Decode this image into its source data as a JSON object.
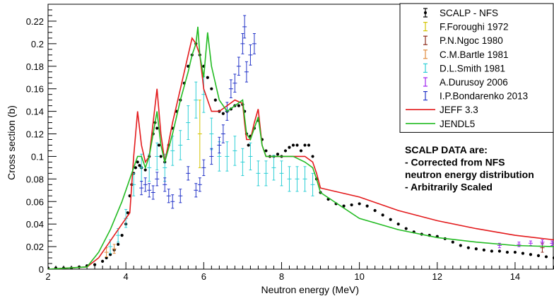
{
  "chart_data": {
    "type": "scatter",
    "title": "",
    "xlabel": "Neutron energy (MeV)",
    "ylabel": "Cross section (b)",
    "xlim": [
      2,
      15
    ],
    "ylim": [
      0,
      0.235
    ],
    "x_ticks": [
      2,
      4,
      6,
      8,
      10,
      12,
      14
    ],
    "x_tick_labels": [
      "2",
      "4",
      "6",
      "8",
      "10",
      "12",
      "14"
    ],
    "y_ticks": [
      0,
      0.02,
      0.04,
      0.06,
      0.08,
      0.1,
      0.12,
      0.14,
      0.16,
      0.18,
      0.2,
      0.22
    ],
    "y_tick_labels": [
      "0",
      "0.02",
      "0.04",
      "0.06",
      "0.08",
      "0.1",
      "0.12",
      "0.14",
      "0.16",
      "0.18",
      "0.2",
      "0.22"
    ],
    "legend_position": "top-right",
    "annotation": [
      "SCALP DATA are:",
      "- Corrected from NFS",
      "neutron energy distribution",
      "- Arbitrarily Scaled"
    ],
    "series": [
      {
        "name": "SCALP - NFS",
        "kind": "points",
        "color": "#000000",
        "x": [
          2.0,
          2.2,
          2.4,
          2.6,
          2.8,
          3.0,
          3.2,
          3.4,
          3.5,
          3.6,
          3.7,
          3.8,
          3.9,
          4.0,
          4.05,
          4.1,
          4.15,
          4.2,
          4.25,
          4.3,
          4.35,
          4.4,
          4.5,
          4.6,
          4.7,
          4.75,
          4.8,
          4.85,
          4.9,
          5.0,
          5.1,
          5.2,
          5.3,
          5.4,
          5.5,
          5.6,
          5.7,
          5.8,
          5.9,
          6.0,
          6.1,
          6.2,
          6.3,
          6.4,
          6.5,
          6.6,
          6.7,
          6.8,
          6.9,
          7.0,
          7.05,
          7.1,
          7.15,
          7.2,
          7.3,
          7.4,
          7.5,
          7.6,
          7.7,
          7.8,
          7.9,
          8.0,
          8.1,
          8.2,
          8.3,
          8.4,
          8.5,
          8.6,
          8.7,
          8.8,
          8.9,
          9.0,
          9.2,
          9.4,
          9.6,
          9.8,
          10.0,
          10.2,
          10.4,
          10.6,
          10.8,
          11.0,
          11.2,
          11.4,
          11.6,
          11.8,
          12.0,
          12.2,
          12.4,
          12.6,
          12.8,
          13.0,
          13.2,
          13.4,
          13.6,
          13.8,
          14.0,
          14.2,
          14.4,
          14.6,
          14.8,
          15.0
        ],
        "y": [
          0.001,
          0.001,
          0.001,
          0.001,
          0.002,
          0.003,
          0.004,
          0.007,
          0.01,
          0.013,
          0.017,
          0.022,
          0.03,
          0.04,
          0.05,
          0.065,
          0.075,
          0.085,
          0.09,
          0.095,
          0.092,
          0.09,
          0.088,
          0.1,
          0.12,
          0.13,
          0.125,
          0.11,
          0.1,
          0.095,
          0.11,
          0.125,
          0.14,
          0.15,
          0.165,
          0.18,
          0.19,
          0.2,
          0.19,
          0.18,
          0.17,
          0.16,
          0.15,
          0.14,
          0.138,
          0.14,
          0.142,
          0.145,
          0.145,
          0.146,
          0.14,
          0.12,
          0.11,
          0.118,
          0.125,
          0.132,
          0.115,
          0.105,
          0.1,
          0.1,
          0.102,
          0.1,
          0.105,
          0.108,
          0.11,
          0.11,
          0.105,
          0.11,
          0.11,
          0.1,
          0.08,
          0.068,
          0.062,
          0.058,
          0.056,
          0.057,
          0.058,
          0.056,
          0.052,
          0.048,
          0.044,
          0.04,
          0.036,
          0.033,
          0.031,
          0.03,
          0.029,
          0.027,
          0.024,
          0.021,
          0.019,
          0.018,
          0.017,
          0.016,
          0.016,
          0.015,
          0.015,
          0.014,
          0.013,
          0.012,
          0.011,
          0.01
        ]
      },
      {
        "name": "F.Foroughi 1972",
        "kind": "errorbars",
        "color": "#d4c400",
        "x": [
          5.9
        ],
        "y": [
          0.12
        ],
        "err": [
          0.03
        ]
      },
      {
        "name": "P.N.Ngoc 1980",
        "kind": "errorbars",
        "color": "#8b2a1a",
        "x": [
          14.7
        ],
        "y": [
          0.019
        ],
        "err": [
          0.004
        ]
      },
      {
        "name": "C.M.Bartle 1981",
        "kind": "errorbars",
        "color": "#e08a3c",
        "x": [
          3.5,
          3.7
        ],
        "y": [
          0.015,
          0.018
        ],
        "err": [
          0.004,
          0.004
        ]
      },
      {
        "name": "D.L.Smith 1981",
        "kind": "errorbars",
        "color": "#2ecfd6",
        "x": [
          3.6,
          3.8,
          4.0,
          4.2,
          4.4,
          4.6,
          4.8,
          5.0,
          5.2,
          5.4,
          5.6,
          5.8,
          6.0,
          6.2,
          6.4,
          6.6,
          6.8,
          7.0,
          7.2,
          7.4,
          7.6,
          7.8,
          8.0,
          8.2,
          8.4,
          8.6,
          8.8
        ],
        "y": [
          0.02,
          0.03,
          0.045,
          0.075,
          0.09,
          0.09,
          0.1,
          0.09,
          0.105,
          0.11,
          0.13,
          0.15,
          0.155,
          0.12,
          0.1,
          0.1,
          0.105,
          0.095,
          0.1,
          0.085,
          0.085,
          0.09,
          0.085,
          0.08,
          0.08,
          0.08,
          0.075
        ],
        "err": [
          0.006,
          0.006,
          0.008,
          0.01,
          0.012,
          0.012,
          0.012,
          0.012,
          0.013,
          0.013,
          0.015,
          0.016,
          0.016,
          0.014,
          0.013,
          0.013,
          0.013,
          0.012,
          0.012,
          0.011,
          0.011,
          0.011,
          0.011,
          0.011,
          0.011,
          0.011,
          0.01
        ]
      },
      {
        "name": "A.Durusoy 2006",
        "kind": "errorbars",
        "color": "#a020f0",
        "x": [
          13.6,
          14.1,
          14.4,
          14.7,
          14.95
        ],
        "y": [
          0.021,
          0.022,
          0.023,
          0.024,
          0.023
        ],
        "err": [
          0.002,
          0.002,
          0.002,
          0.002,
          0.002
        ]
      },
      {
        "name": "I.P.Bondarenko 2013",
        "kind": "errorbars",
        "color": "#2233c8",
        "x": [
          4.4,
          4.5,
          4.6,
          4.7,
          4.8,
          5.0,
          5.1,
          5.2,
          5.4,
          5.6,
          5.8,
          5.9,
          6.0,
          6.2,
          6.4,
          6.5,
          6.6,
          6.7,
          6.8,
          6.9,
          7.0,
          7.05,
          7.1,
          7.2,
          7.3
        ],
        "y": [
          0.072,
          0.075,
          0.07,
          0.068,
          0.08,
          0.075,
          0.065,
          0.06,
          0.065,
          0.085,
          0.07,
          0.075,
          0.09,
          0.1,
          0.11,
          0.12,
          0.14,
          0.16,
          0.165,
          0.18,
          0.2,
          0.215,
          0.175,
          0.19,
          0.2
        ],
        "err": [
          0.006,
          0.006,
          0.006,
          0.006,
          0.006,
          0.006,
          0.006,
          0.006,
          0.006,
          0.006,
          0.006,
          0.006,
          0.007,
          0.007,
          0.007,
          0.008,
          0.008,
          0.008,
          0.008,
          0.008,
          0.009,
          0.01,
          0.009,
          0.009,
          0.009
        ]
      },
      {
        "name": "JEFF 3.3",
        "kind": "line",
        "color": "#e31a1c",
        "x": [
          2.0,
          3.0,
          3.3,
          3.6,
          3.9,
          4.1,
          4.2,
          4.3,
          4.4,
          4.5,
          4.6,
          4.7,
          4.8,
          4.9,
          5.0,
          5.2,
          5.4,
          5.6,
          5.7,
          5.8,
          5.9,
          6.0,
          6.2,
          6.4,
          6.6,
          6.8,
          7.0,
          7.05,
          7.1,
          7.2,
          7.3,
          7.4,
          7.5,
          7.6,
          7.8,
          8.0,
          8.3,
          8.6,
          8.8,
          8.9,
          9.0,
          10.0,
          11.0,
          12.0,
          13.0,
          14.0,
          15.0
        ],
        "y": [
          0.0,
          0.002,
          0.01,
          0.025,
          0.04,
          0.05,
          0.1,
          0.14,
          0.11,
          0.095,
          0.1,
          0.13,
          0.16,
          0.12,
          0.095,
          0.13,
          0.16,
          0.19,
          0.205,
          0.2,
          0.19,
          0.16,
          0.14,
          0.14,
          0.145,
          0.15,
          0.147,
          0.13,
          0.115,
          0.115,
          0.13,
          0.142,
          0.11,
          0.1,
          0.1,
          0.1,
          0.1,
          0.1,
          0.095,
          0.085,
          0.072,
          0.064,
          0.052,
          0.043,
          0.036,
          0.03,
          0.026
        ]
      },
      {
        "name": "JENDL5",
        "kind": "line",
        "color": "#22bb22",
        "x": [
          2.0,
          3.0,
          3.3,
          3.6,
          3.9,
          4.1,
          4.2,
          4.3,
          4.4,
          4.5,
          4.6,
          4.7,
          4.8,
          4.9,
          5.0,
          5.2,
          5.4,
          5.6,
          5.7,
          5.8,
          5.85,
          5.9,
          6.0,
          6.1,
          6.2,
          6.4,
          6.6,
          6.8,
          7.0,
          7.05,
          7.1,
          7.2,
          7.3,
          7.4,
          7.5,
          7.6,
          7.8,
          8.0,
          8.3,
          8.6,
          8.8,
          8.9,
          9.0,
          10.0,
          11.0,
          12.0,
          13.0,
          14.0,
          15.0
        ],
        "y": [
          0.0,
          0.002,
          0.015,
          0.035,
          0.06,
          0.08,
          0.09,
          0.1,
          0.1,
          0.09,
          0.1,
          0.12,
          0.14,
          0.11,
          0.095,
          0.12,
          0.15,
          0.175,
          0.19,
          0.2,
          0.215,
          0.19,
          0.17,
          0.21,
          0.18,
          0.15,
          0.14,
          0.145,
          0.15,
          0.135,
          0.12,
          0.115,
          0.125,
          0.135,
          0.11,
          0.1,
          0.1,
          0.1,
          0.1,
          0.095,
          0.09,
          0.08,
          0.068,
          0.045,
          0.035,
          0.028,
          0.024,
          0.021,
          0.02
        ]
      }
    ]
  }
}
